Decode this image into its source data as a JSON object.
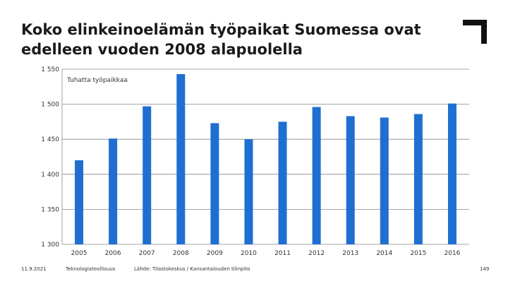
{
  "slide": {
    "title_line1": "Koko elinkeinoelämän työpaikat Suomessa ovat",
    "title_line2": "edelleen vuoden 2008 alapuolella"
  },
  "footer": {
    "date": "11.9.2021",
    "organization": "Teknologiateollisuus",
    "source": "Lähde: Tilastokeskus / Kansantalouden tilinpito",
    "page": "149"
  },
  "colors": {
    "bar": "#1F6FD1",
    "grid": "#888888",
    "logo": "#111111"
  },
  "logo_icon": "corner-bracket-logo",
  "chart_data": {
    "type": "bar",
    "title": "",
    "series_label": "Tuhatta työpaikkaa",
    "categories": [
      "2005",
      "2006",
      "2007",
      "2008",
      "2009",
      "2010",
      "2011",
      "2012",
      "2013",
      "2014",
      "2015",
      "2016"
    ],
    "values": [
      1420,
      1451,
      1497,
      1543,
      1473,
      1450,
      1475,
      1496,
      1483,
      1481,
      1486,
      1501
    ],
    "ylim": [
      1300,
      1550
    ],
    "yticks": [
      1300,
      1350,
      1400,
      1450,
      1500,
      1550
    ],
    "ytick_labels": [
      "1 300",
      "1 350",
      "1 400",
      "1 450",
      "1 500",
      "1 550"
    ],
    "grid": true,
    "xlabel": "",
    "ylabel": ""
  }
}
